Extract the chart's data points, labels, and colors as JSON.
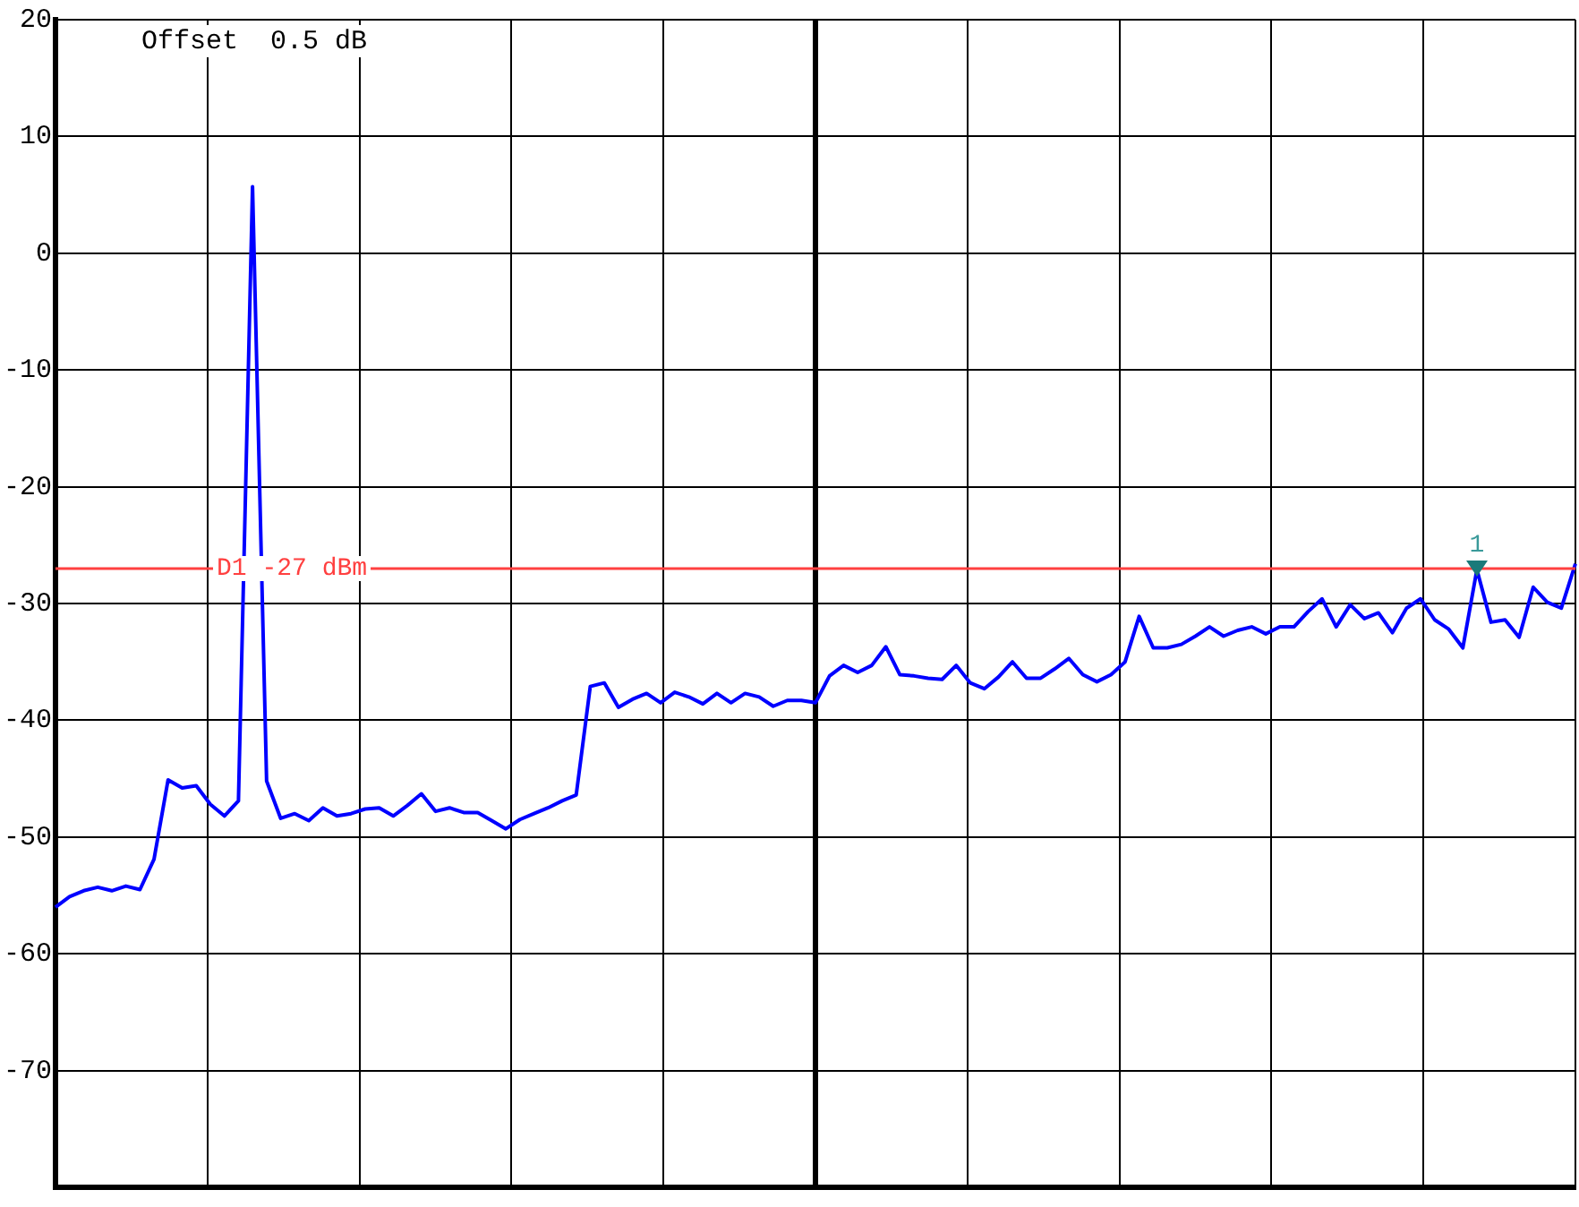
{
  "chart_data": {
    "type": "line",
    "annotations": [
      "Offset  0.5 dB",
      {
        "text": "1",
        "y": -27
      }
    ],
    "categories": [
      null,
      null,
      null,
      null,
      null,
      null,
      null,
      null,
      null,
      null,
      null,
      null,
      null,
      null,
      null,
      null,
      null,
      null,
      null,
      null,
      null,
      null,
      null,
      null,
      null,
      null,
      null,
      null,
      null,
      null,
      null,
      null,
      null,
      null,
      null,
      null,
      null,
      null,
      null,
      null,
      null,
      null,
      null,
      null,
      null,
      null,
      null,
      null,
      null,
      null,
      null,
      null,
      null,
      null,
      null,
      null,
      null,
      null,
      null,
      null,
      null,
      null,
      null,
      null,
      null,
      null,
      null,
      null,
      null,
      null,
      null,
      null,
      null,
      null,
      null,
      null,
      null,
      null,
      null,
      null,
      null,
      null,
      null,
      null,
      null,
      null,
      null,
      null,
      null,
      null,
      null,
      null,
      null,
      null,
      null,
      null,
      null,
      null,
      null,
      null,
      null,
      null,
      null,
      null,
      null,
      null,
      null,
      null,
      null
    ],
    "ylim": [
      -80,
      20
    ],
    "yticks": [
      20,
      10,
      0,
      -10,
      -20,
      -30,
      -40,
      -50,
      -60,
      -70
    ],
    "grid": true,
    "legend": false,
    "marker": "none",
    "line_style": "solid",
    "tick_labels": "y",
    "ref_lines": [
      {
        "axis": "y",
        "value": -27,
        "label": "D1 -27 dBm",
        "color": "#ff4040"
      }
    ],
    "series": [
      {
        "color": "#0000ff",
        "values": [
          -56.0,
          -55.1,
          -54.6,
          -54.3,
          -54.6,
          -54.2,
          -54.5,
          -51.9,
          -45.1,
          -45.8,
          -45.6,
          -47.2,
          -48.2,
          -46.9,
          5.7,
          -45.2,
          -48.4,
          -48.0,
          -48.6,
          -47.5,
          -48.2,
          -48.0,
          -47.6,
          -47.5,
          -48.2,
          -47.3,
          -46.3,
          -47.8,
          -47.5,
          -47.9,
          -47.9,
          -48.6,
          -49.3,
          -48.5,
          -48.0,
          -47.5,
          -46.9,
          -46.4,
          -37.1,
          -36.8,
          -38.9,
          -38.2,
          -37.7,
          -38.5,
          -37.6,
          -38.0,
          -38.6,
          -37.7,
          -38.5,
          -37.7,
          -38.0,
          -38.8,
          -38.3,
          -38.3,
          -38.5,
          -36.2,
          -35.3,
          -35.9,
          -35.3,
          -33.7,
          -36.1,
          -36.2,
          -36.4,
          -36.5,
          -35.3,
          -36.8,
          -37.3,
          -36.3,
          -35.0,
          -36.4,
          -36.4,
          -35.6,
          -34.7,
          -36.1,
          -36.7,
          -36.1,
          -35.0,
          -31.1,
          -33.8,
          -33.8,
          -33.5,
          -32.8,
          -32.0,
          -32.8,
          -32.3,
          -32.0,
          -32.6,
          -32.0,
          -32.0,
          -30.7,
          -29.6,
          -32.0,
          -30.1,
          -31.3,
          -30.8,
          -32.5,
          -30.4,
          -29.6,
          -31.4,
          -32.2,
          -33.8,
          -27.1,
          -31.6,
          -31.4,
          -32.9,
          -28.6,
          -29.9,
          -30.4,
          -26.6
        ]
      }
    ]
  }
}
